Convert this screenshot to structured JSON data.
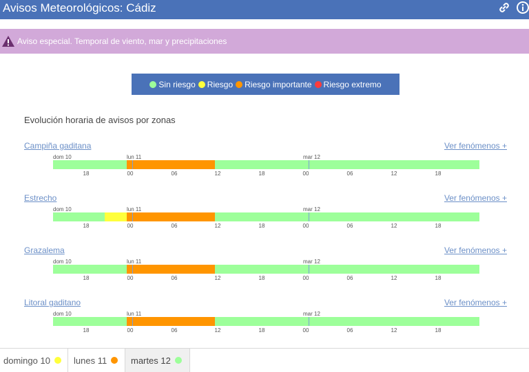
{
  "header": {
    "title": "Avisos Meteorológicos: Cádiz"
  },
  "alert": {
    "text": "Aviso especial. Temporal de viento, mar y precipitaciones"
  },
  "legend": [
    {
      "label": "Sin riesgo",
      "color": "#9dff9a"
    },
    {
      "label": "Riesgo",
      "color": "#ffff3c"
    },
    {
      "label": "Riesgo importante",
      "color": "#ff9500"
    },
    {
      "label": "Riesgo extremo",
      "color": "#ff3b3b"
    }
  ],
  "section_title": "Evolución horaria de avisos por zonas",
  "day_labels": [
    "dom 10",
    "lun 11",
    "mar 12"
  ],
  "hour_ticks": [
    "18",
    "00",
    "06",
    "12",
    "18",
    "00",
    "06",
    "12",
    "18"
  ],
  "zones": [
    {
      "name": "Campiña gaditana",
      "link": "Ver fenómenos +",
      "segments": [
        {
          "level": "Sin riesgo",
          "start_hour": 0,
          "end_hour": 10
        },
        {
          "level": "Riesgo importante",
          "start_hour": 10,
          "end_hour": 22
        },
        {
          "level": "Sin riesgo",
          "start_hour": 22,
          "end_hour": 58
        }
      ]
    },
    {
      "name": "Estrecho",
      "link": "Ver fenómenos +",
      "segments": [
        {
          "level": "Sin riesgo",
          "start_hour": 0,
          "end_hour": 7
        },
        {
          "level": "Riesgo",
          "start_hour": 7,
          "end_hour": 10
        },
        {
          "level": "Riesgo importante",
          "start_hour": 10,
          "end_hour": 22
        },
        {
          "level": "Sin riesgo",
          "start_hour": 22,
          "end_hour": 58
        }
      ]
    },
    {
      "name": "Grazalema",
      "link": "Ver fenómenos +",
      "segments": [
        {
          "level": "Sin riesgo",
          "start_hour": 0,
          "end_hour": 10
        },
        {
          "level": "Riesgo importante",
          "start_hour": 10,
          "end_hour": 22
        },
        {
          "level": "Sin riesgo",
          "start_hour": 22,
          "end_hour": 58
        }
      ]
    },
    {
      "name": "Litoral gaditano",
      "link": "Ver fenómenos +",
      "segments": [
        {
          "level": "Sin riesgo",
          "start_hour": 0,
          "end_hour": 10
        },
        {
          "level": "Riesgo importante",
          "start_hour": 10,
          "end_hour": 22
        },
        {
          "level": "Sin riesgo",
          "start_hour": 22,
          "end_hour": 58
        }
      ]
    }
  ],
  "day_tabs": [
    {
      "label": "domingo 10",
      "dot_color": "#ffff3c",
      "active": false
    },
    {
      "label": "lunes 11",
      "dot_color": "#ff9500",
      "active": false
    },
    {
      "label": "martes 12",
      "dot_color": "#9dff9a",
      "active": true
    }
  ]
}
